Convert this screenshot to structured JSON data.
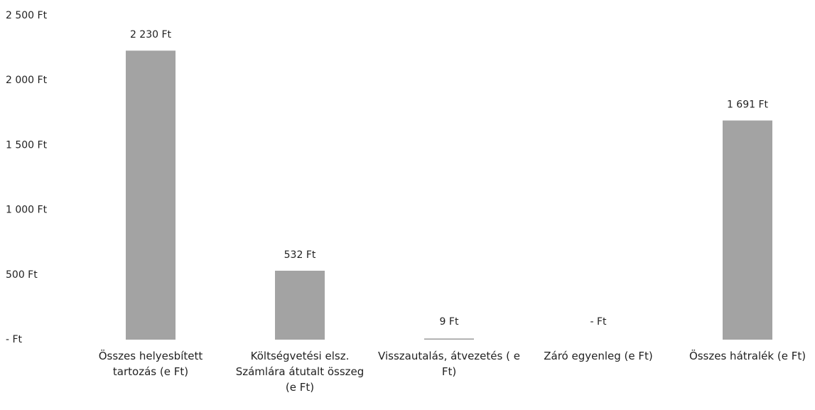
{
  "chart_data": {
    "type": "bar",
    "categories": [
      "Összes helyesbített tartozás (e Ft)",
      "Költségvetési elsz. Számlára átutalt összeg (e Ft)",
      "Visszautalás, átvezetés ( e Ft)",
      "Záró egyenleg (e Ft)",
      "Összes hátralék (e Ft)"
    ],
    "values": [
      2230,
      532,
      9,
      0,
      1691
    ],
    "value_labels": [
      "2 230 Ft",
      "532 Ft",
      "9 Ft",
      "-  Ft",
      "1 691 Ft"
    ],
    "color": "#a3a3a3",
    "ylim": [
      0,
      2500
    ],
    "yticks": [
      {
        "value": 0,
        "label": "-  Ft"
      },
      {
        "value": 500,
        "label": "500 Ft"
      },
      {
        "value": 1000,
        "label": "1 000 Ft"
      },
      {
        "value": 1500,
        "label": "1 500 Ft"
      },
      {
        "value": 2000,
        "label": "2 000 Ft"
      },
      {
        "value": 2500,
        "label": "2 500 Ft"
      }
    ],
    "grid": false
  }
}
